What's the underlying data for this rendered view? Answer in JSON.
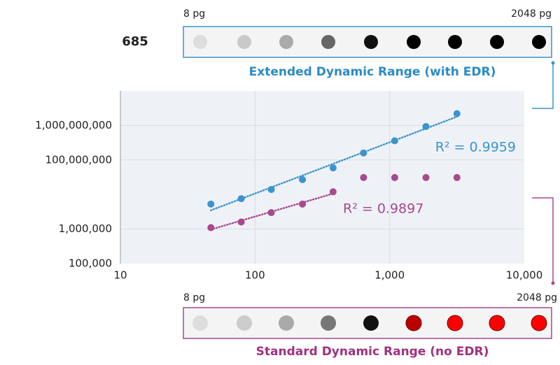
{
  "top_strip": {
    "sample_label": "685",
    "start_label": "8 pg",
    "end_label": "2048 pg"
  },
  "bottom_strip": {
    "start_label": "8 pg",
    "end_label": "2048 pg"
  },
  "chart_data": {
    "type": "scatter",
    "log_x": true,
    "log_y": true,
    "grid": true,
    "trendline": true,
    "x": [
      47,
      79,
      132,
      225,
      380,
      640,
      1090,
      1860,
      3160
    ],
    "series": [
      {
        "name": "Extended Dynamic Range (with EDR)",
        "color": "#3b94cc",
        "annotation": "R² = 0.9959",
        "values": [
          5300000,
          7600000,
          14000000,
          27000000,
          59000000,
          160000000,
          360000000,
          930000000,
          2200000000
        ]
      },
      {
        "name": "Standard Dynamic Range (no EDR)",
        "color": "#a8488f",
        "annotation": "R² = 0.9897",
        "values": [
          1100000,
          1600000,
          3000000,
          5300000,
          12000000,
          31000000,
          31000000,
          31000000,
          31000000
        ]
      }
    ],
    "xlim": [
      10,
      10000
    ],
    "xticks": [
      10,
      100,
      {
        "value": 1000,
        "label": "1,000"
      },
      {
        "value": 10000,
        "label": "10,000"
      }
    ],
    "ylim": [
      100000,
      10000000000
    ],
    "yticks": [
      {
        "value": 100000,
        "label": "100,000"
      },
      {
        "value": 1000000,
        "label": "1,000,000"
      },
      {
        "value": 100000000,
        "label": "100,000,000"
      },
      {
        "value": 1000000000,
        "label": "1,000,000,000"
      }
    ]
  }
}
